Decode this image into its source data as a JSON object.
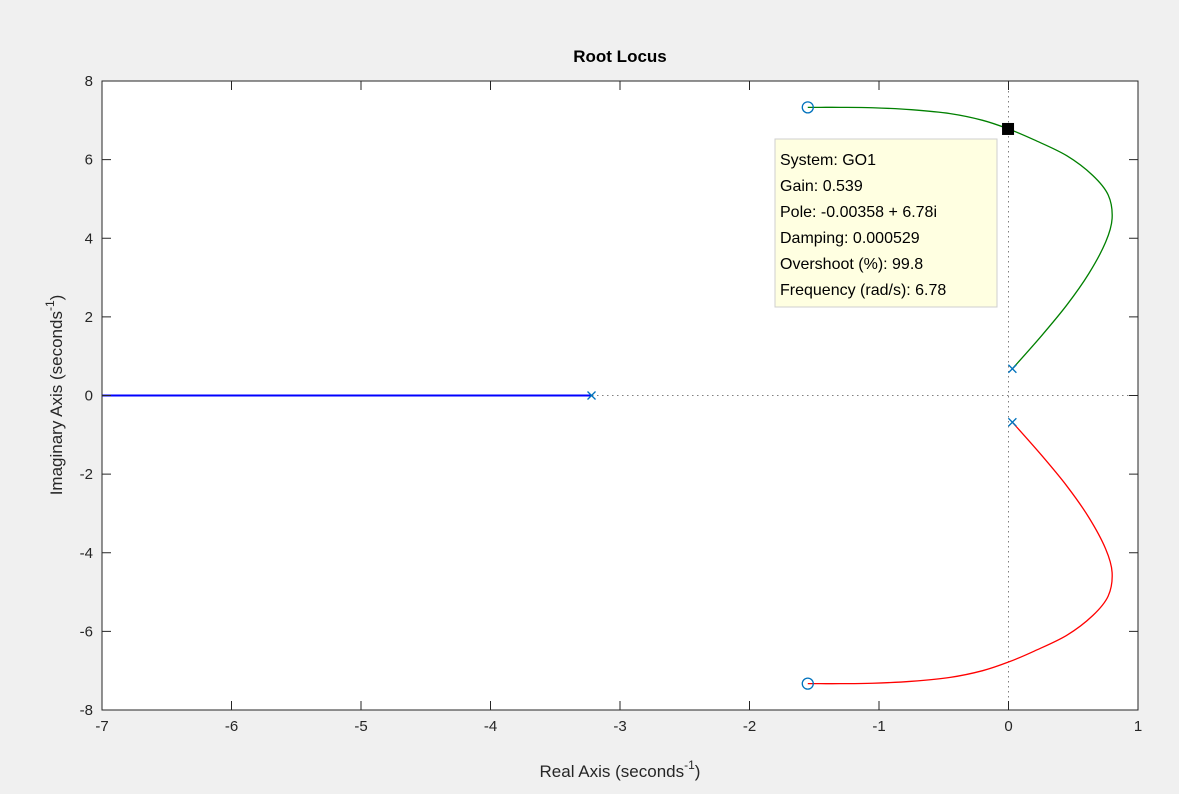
{
  "chart_data": {
    "type": "line",
    "title": "Root Locus",
    "xlabel": {
      "text": "Real Axis (seconds",
      "sup": "-1",
      "close": ")"
    },
    "ylabel": {
      "text": "Imaginary Axis (seconds",
      "sup": "-1",
      "close": ")"
    },
    "xlim": [
      -7,
      1
    ],
    "ylim": [
      -8,
      8
    ],
    "xticks": [
      -7,
      -6,
      -5,
      -4,
      -3,
      -2,
      -1,
      0,
      1
    ],
    "yticks": [
      -8,
      -6,
      -4,
      -2,
      0,
      2,
      4,
      6,
      8
    ],
    "grid": false,
    "colors": {
      "branch_real": "#0000ff",
      "branch_upper": "#008000",
      "branch_lower": "#ff0000",
      "marker": "#0072bd"
    },
    "poles": [
      [
        -3.22,
        0
      ],
      [
        0.03,
        0.68
      ],
      [
        0.03,
        -0.68
      ]
    ],
    "zeros": [
      [
        -1.55,
        7.33
      ],
      [
        -1.55,
        -7.33
      ]
    ],
    "series": [
      {
        "color": "#0000ff",
        "x": [
          -3.22,
          -7.0
        ],
        "y": [
          0,
          0
        ]
      },
      {
        "color": "#008000",
        "x": [
          0.03,
          0.25,
          0.45,
          0.62,
          0.75,
          0.8,
          0.77,
          0.65,
          0.45,
          0.2,
          0.0,
          -0.2,
          -0.45,
          -0.75,
          -1.05,
          -1.3,
          -1.45,
          -1.55
        ],
        "y": [
          0.68,
          1.5,
          2.3,
          3.1,
          3.9,
          4.5,
          5.1,
          5.6,
          6.1,
          6.5,
          6.78,
          7.0,
          7.17,
          7.27,
          7.32,
          7.33,
          7.33,
          7.33
        ]
      },
      {
        "color": "#ff0000",
        "x": [
          0.03,
          0.25,
          0.45,
          0.62,
          0.75,
          0.8,
          0.77,
          0.65,
          0.45,
          0.2,
          0.0,
          -0.2,
          -0.45,
          -0.75,
          -1.05,
          -1.3,
          -1.45,
          -1.55
        ],
        "y": [
          -0.68,
          -1.5,
          -2.3,
          -3.1,
          -3.9,
          -4.5,
          -5.1,
          -5.6,
          -6.1,
          -6.5,
          -6.78,
          -7.0,
          -7.17,
          -7.27,
          -7.32,
          -7.33,
          -7.33,
          -7.33
        ]
      }
    ],
    "datatip": {
      "point": [
        -0.00358,
        6.78
      ],
      "lines": [
        "System: GO1",
        "Gain: 0.539",
        "Pole: -0.00358 + 6.78i",
        "Damping: 0.000529",
        "Overshoot (%): 99.8",
        "Frequency (rad/s): 6.78"
      ]
    }
  }
}
